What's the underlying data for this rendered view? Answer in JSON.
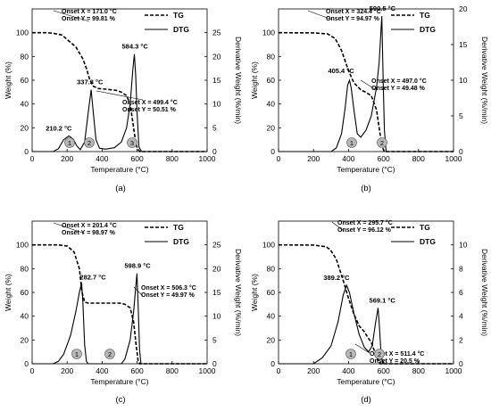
{
  "chart_data": [
    {
      "type": "line",
      "panel_label": "(a)",
      "xlabel": "Temperature (°C)",
      "ylabel": "Weight (%)",
      "y2label": "Derivative Weight (%/min)",
      "xlim": [
        0,
        1000
      ],
      "ylim": [
        0,
        120
      ],
      "y2lim": [
        0,
        30
      ],
      "x_ticks": [
        "0",
        "200",
        "400",
        "600",
        "800",
        "1000"
      ],
      "y_ticks": [
        "0",
        "20",
        "40",
        "60",
        "80",
        "100"
      ],
      "y2_ticks": [
        "0",
        "5",
        "10",
        "15",
        "20",
        "25"
      ],
      "legend": [
        "TG",
        "DTG"
      ],
      "series": [
        {
          "name": "TG",
          "axis": "left",
          "style": "dashed",
          "points": [
            [
              0,
              100
            ],
            [
              80,
              100
            ],
            [
              120,
              99.5
            ],
            [
              171,
              98
            ],
            [
              210,
              93
            ],
            [
              250,
              88
            ],
            [
              290,
              78
            ],
            [
              310,
              70
            ],
            [
              330,
              60
            ],
            [
              350,
              55
            ],
            [
              380,
              53
            ],
            [
              420,
              52.5
            ],
            [
              480,
              51.5
            ],
            [
              510,
              50
            ],
            [
              540,
              47
            ],
            [
              560,
              40
            ],
            [
              575,
              25
            ],
            [
              590,
              10
            ],
            [
              600,
              3
            ],
            [
              615,
              0
            ],
            [
              1000,
              0
            ]
          ]
        },
        {
          "name": "DTG",
          "axis": "right",
          "style": "solid",
          "points": [
            [
              0,
              0
            ],
            [
              120,
              0
            ],
            [
              150,
              0.6
            ],
            [
              180,
              2.5
            ],
            [
              210.2,
              3.3
            ],
            [
              235,
              2.6
            ],
            [
              255,
              1.2
            ],
            [
              275,
              0.4
            ],
            [
              300,
              2
            ],
            [
              320,
              8
            ],
            [
              337.3,
              13
            ],
            [
              350,
              8
            ],
            [
              365,
              2.5
            ],
            [
              385,
              0.7
            ],
            [
              420,
              0.5
            ],
            [
              470,
              0.8
            ],
            [
              510,
              2
            ],
            [
              540,
              5
            ],
            [
              560,
              10
            ],
            [
              575,
              17
            ],
            [
              584.3,
              20.5
            ],
            [
              592,
              16
            ],
            [
              600,
              8
            ],
            [
              610,
              1
            ],
            [
              625,
              0
            ],
            [
              1000,
              0
            ]
          ]
        }
      ],
      "peak_labels": [
        {
          "x": 210.2,
          "y": 3.3,
          "text": "210.2 °C"
        },
        {
          "x": 337.3,
          "y": 13,
          "text": "337.3 °C"
        },
        {
          "x": 584.3,
          "y": 20.5,
          "text": "584.3 °C"
        }
      ],
      "onsets": [
        {
          "x_text": "Onset X = 171.0 °C",
          "y_text": "Onset Y = 99.81 %"
        },
        {
          "x_text": "Onset X = 499.4 °C",
          "y_text": "Onset Y = 50.51 %"
        }
      ],
      "stage_markers": [
        "1",
        "2",
        "3"
      ]
    },
    {
      "type": "line",
      "panel_label": "(b)",
      "xlabel": "Temperature (°C)",
      "ylabel": "Weight (%)",
      "y2label": "Derivative Weight (%/min)",
      "xlim": [
        0,
        1000
      ],
      "ylim": [
        0,
        120
      ],
      "y2lim": [
        0,
        20
      ],
      "x_ticks": [
        "0",
        "200",
        "400",
        "600",
        "800",
        "1000"
      ],
      "y_ticks": [
        "0",
        "20",
        "40",
        "60",
        "80",
        "100"
      ],
      "y2_ticks": [
        "0",
        "5",
        "10",
        "15",
        "20"
      ],
      "legend": [
        "TG",
        "DTG"
      ],
      "series": [
        {
          "name": "TG",
          "axis": "left",
          "style": "dashed",
          "points": [
            [
              0,
              100
            ],
            [
              200,
              99.8
            ],
            [
              280,
              99
            ],
            [
              324.4,
              95
            ],
            [
              360,
              85
            ],
            [
              400,
              68
            ],
            [
              430,
              58
            ],
            [
              470,
              52
            ],
            [
              497,
              50
            ],
            [
              530,
              47
            ],
            [
              560,
              35
            ],
            [
              580,
              15
            ],
            [
              595,
              3
            ],
            [
              605,
              0
            ],
            [
              1000,
              0
            ]
          ]
        },
        {
          "name": "DTG",
          "axis": "right",
          "style": "solid",
          "points": [
            [
              0,
              0
            ],
            [
              300,
              0
            ],
            [
              330,
              0.5
            ],
            [
              360,
              2.5
            ],
            [
              380,
              6
            ],
            [
              395,
              9.3
            ],
            [
              405.4,
              10
            ],
            [
              415,
              9
            ],
            [
              430,
              6
            ],
            [
              450,
              2.5
            ],
            [
              470,
              2
            ],
            [
              500,
              3
            ],
            [
              530,
              5
            ],
            [
              560,
              9
            ],
            [
              575,
              12.5
            ],
            [
              590.5,
              19
            ],
            [
              598,
              10
            ],
            [
              605,
              3
            ],
            [
              615,
              0
            ],
            [
              1000,
              0
            ]
          ]
        }
      ],
      "peak_labels": [
        {
          "x": 405.4,
          "y": 10,
          "text": "405.4 °C"
        },
        {
          "x": 590.5,
          "y": 19,
          "text": "590.5 °C"
        }
      ],
      "onsets": [
        {
          "x_text": "Onset X = 324.4 °C",
          "y_text": "Onset Y = 94.97 %"
        },
        {
          "x_text": "Onset X = 497.0 °C",
          "y_text": "Onset Y = 49.48 %"
        }
      ],
      "stage_markers": [
        "1",
        "2"
      ]
    },
    {
      "type": "line",
      "panel_label": "(c)",
      "xlabel": "Temperature (°C)",
      "ylabel": "Weight (%)",
      "y2label": "Derivative Weight (%/min)",
      "xlim": [
        0,
        1000
      ],
      "ylim": [
        0,
        120
      ],
      "y2lim": [
        0,
        30
      ],
      "x_ticks": [
        "0",
        "200",
        "400",
        "600",
        "800",
        "1000"
      ],
      "y_ticks": [
        "0",
        "20",
        "40",
        "60",
        "80",
        "100"
      ],
      "y2_ticks": [
        "0",
        "5",
        "10",
        "15",
        "20",
        "25"
      ],
      "legend": [
        "TG",
        "DTG"
      ],
      "series": [
        {
          "name": "TG",
          "axis": "left",
          "style": "dashed",
          "points": [
            [
              0,
              100
            ],
            [
              150,
              100
            ],
            [
              201.4,
              99
            ],
            [
              240,
              94
            ],
            [
              270,
              80
            ],
            [
              285,
              60
            ],
            [
              300,
              52
            ],
            [
              320,
              51
            ],
            [
              500,
              51
            ],
            [
              530,
              50
            ],
            [
              560,
              47
            ],
            [
              580,
              35
            ],
            [
              595,
              15
            ],
            [
              605,
              3
            ],
            [
              615,
              0
            ],
            [
              1000,
              0
            ]
          ]
        },
        {
          "name": "DTG",
          "axis": "right",
          "style": "solid",
          "points": [
            [
              0,
              0
            ],
            [
              120,
              0
            ],
            [
              150,
              0.5
            ],
            [
              180,
              2
            ],
            [
              220,
              6
            ],
            [
              250,
              11
            ],
            [
              270,
              15
            ],
            [
              282.7,
              17
            ],
            [
              290,
              13
            ],
            [
              300,
              4
            ],
            [
              310,
              0.5
            ],
            [
              320,
              0
            ],
            [
              510,
              0
            ],
            [
              530,
              1
            ],
            [
              560,
              5
            ],
            [
              580,
              11
            ],
            [
              598.9,
              19
            ],
            [
              606,
              12
            ],
            [
              614,
              3
            ],
            [
              622,
              0
            ],
            [
              1000,
              0
            ]
          ]
        }
      ],
      "peak_labels": [
        {
          "x": 282.7,
          "y": 17,
          "text": "282.7 °C"
        },
        {
          "x": 598.9,
          "y": 19,
          "text": "598.9 °C"
        }
      ],
      "onsets": [
        {
          "x_text": "Onset X = 201.4 °C",
          "y_text": "Onset Y = 98.97 %"
        },
        {
          "x_text": "Onset X = 506.3 °C",
          "y_text": "Onset Y = 49.97 %"
        }
      ],
      "stage_markers": [
        "1",
        "2"
      ]
    },
    {
      "type": "line",
      "panel_label": "(d)",
      "xlabel": "Temperature (°C)",
      "ylabel": "Weight (%)",
      "y2label": "Derivative Weight (%/min)",
      "xlim": [
        0,
        1000
      ],
      "ylim": [
        0,
        120
      ],
      "y2lim": [
        0,
        12
      ],
      "x_ticks": [
        "0",
        "200",
        "400",
        "600",
        "800",
        "1000"
      ],
      "y_ticks": [
        "0",
        "20",
        "40",
        "60",
        "80",
        "100"
      ],
      "y2_ticks": [
        "0",
        "2",
        "4",
        "6",
        "8",
        "10"
      ],
      "legend": [
        "TG",
        "DTG"
      ],
      "series": [
        {
          "name": "TG",
          "axis": "left",
          "style": "dashed",
          "points": [
            [
              0,
              100
            ],
            [
              200,
              99.8
            ],
            [
              270,
              98.5
            ],
            [
              295.7,
              96
            ],
            [
              330,
              88
            ],
            [
              370,
              70
            ],
            [
              400,
              55
            ],
            [
              430,
              42
            ],
            [
              460,
              32
            ],
            [
              490,
              27
            ],
            [
              511.4,
              22
            ],
            [
              530,
              18
            ],
            [
              550,
              10
            ],
            [
              570,
              3
            ],
            [
              580,
              0
            ],
            [
              1000,
              0
            ]
          ]
        },
        {
          "name": "DTG",
          "axis": "right",
          "style": "solid",
          "points": [
            [
              0,
              0
            ],
            [
              200,
              0
            ],
            [
              250,
              0.5
            ],
            [
              300,
              1.5
            ],
            [
              340,
              3.5
            ],
            [
              370,
              5.8
            ],
            [
              389.2,
              6.6
            ],
            [
              405,
              6
            ],
            [
              430,
              4.3
            ],
            [
              460,
              2.5
            ],
            [
              490,
              1.4
            ],
            [
              515,
              1
            ],
            [
              535,
              1.5
            ],
            [
              555,
              3.5
            ],
            [
              569.1,
              4.7
            ],
            [
              575,
              3.5
            ],
            [
              585,
              1
            ],
            [
              595,
              0
            ],
            [
              1000,
              0
            ]
          ]
        }
      ],
      "peak_labels": [
        {
          "x": 389.2,
          "y": 6.6,
          "text": "389.2 °C"
        },
        {
          "x": 569.1,
          "y": 4.7,
          "text": "569.1 °C"
        }
      ],
      "onsets": [
        {
          "x_text": "Onset X = 295.7 °C",
          "y_text": "Onset Y = 96.12 %"
        },
        {
          "x_text": "Onset X = 511.4 °C",
          "y_text": "Onset Y = 20.5 %"
        }
      ],
      "stage_markers": [
        "1",
        "2"
      ]
    }
  ]
}
